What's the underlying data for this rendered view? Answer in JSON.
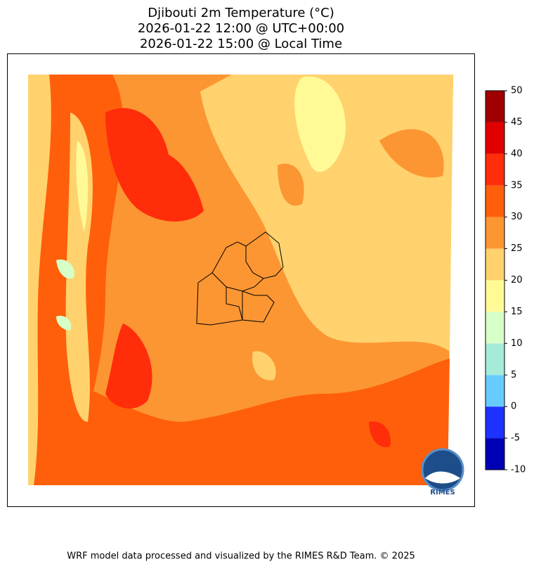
{
  "title": [
    "Djibouti 2m Temperature (°C)",
    "2026-01-22 12:00 @ UTC+00:00",
    "2026-01-22 15:00 @ Local Time"
  ],
  "colorbar": {
    "lim": [
      -10,
      50
    ],
    "ticks": [
      -10,
      -5,
      0,
      5,
      10,
      15,
      20,
      25,
      30,
      35,
      40,
      45,
      50
    ],
    "colors": [
      "#0000b4",
      "#1e32ff",
      "#66ccff",
      "#a6ead8",
      "#d7ffc8",
      "#fffa96",
      "#ffd26e",
      "#fc9632",
      "#ff5f0a",
      "#ff2d0a",
      "#e10000",
      "#a00000"
    ]
  },
  "logo": "RIMES",
  "footer": "WRF model data processed and visualized by the RIMES R&D Team. © 2025"
}
